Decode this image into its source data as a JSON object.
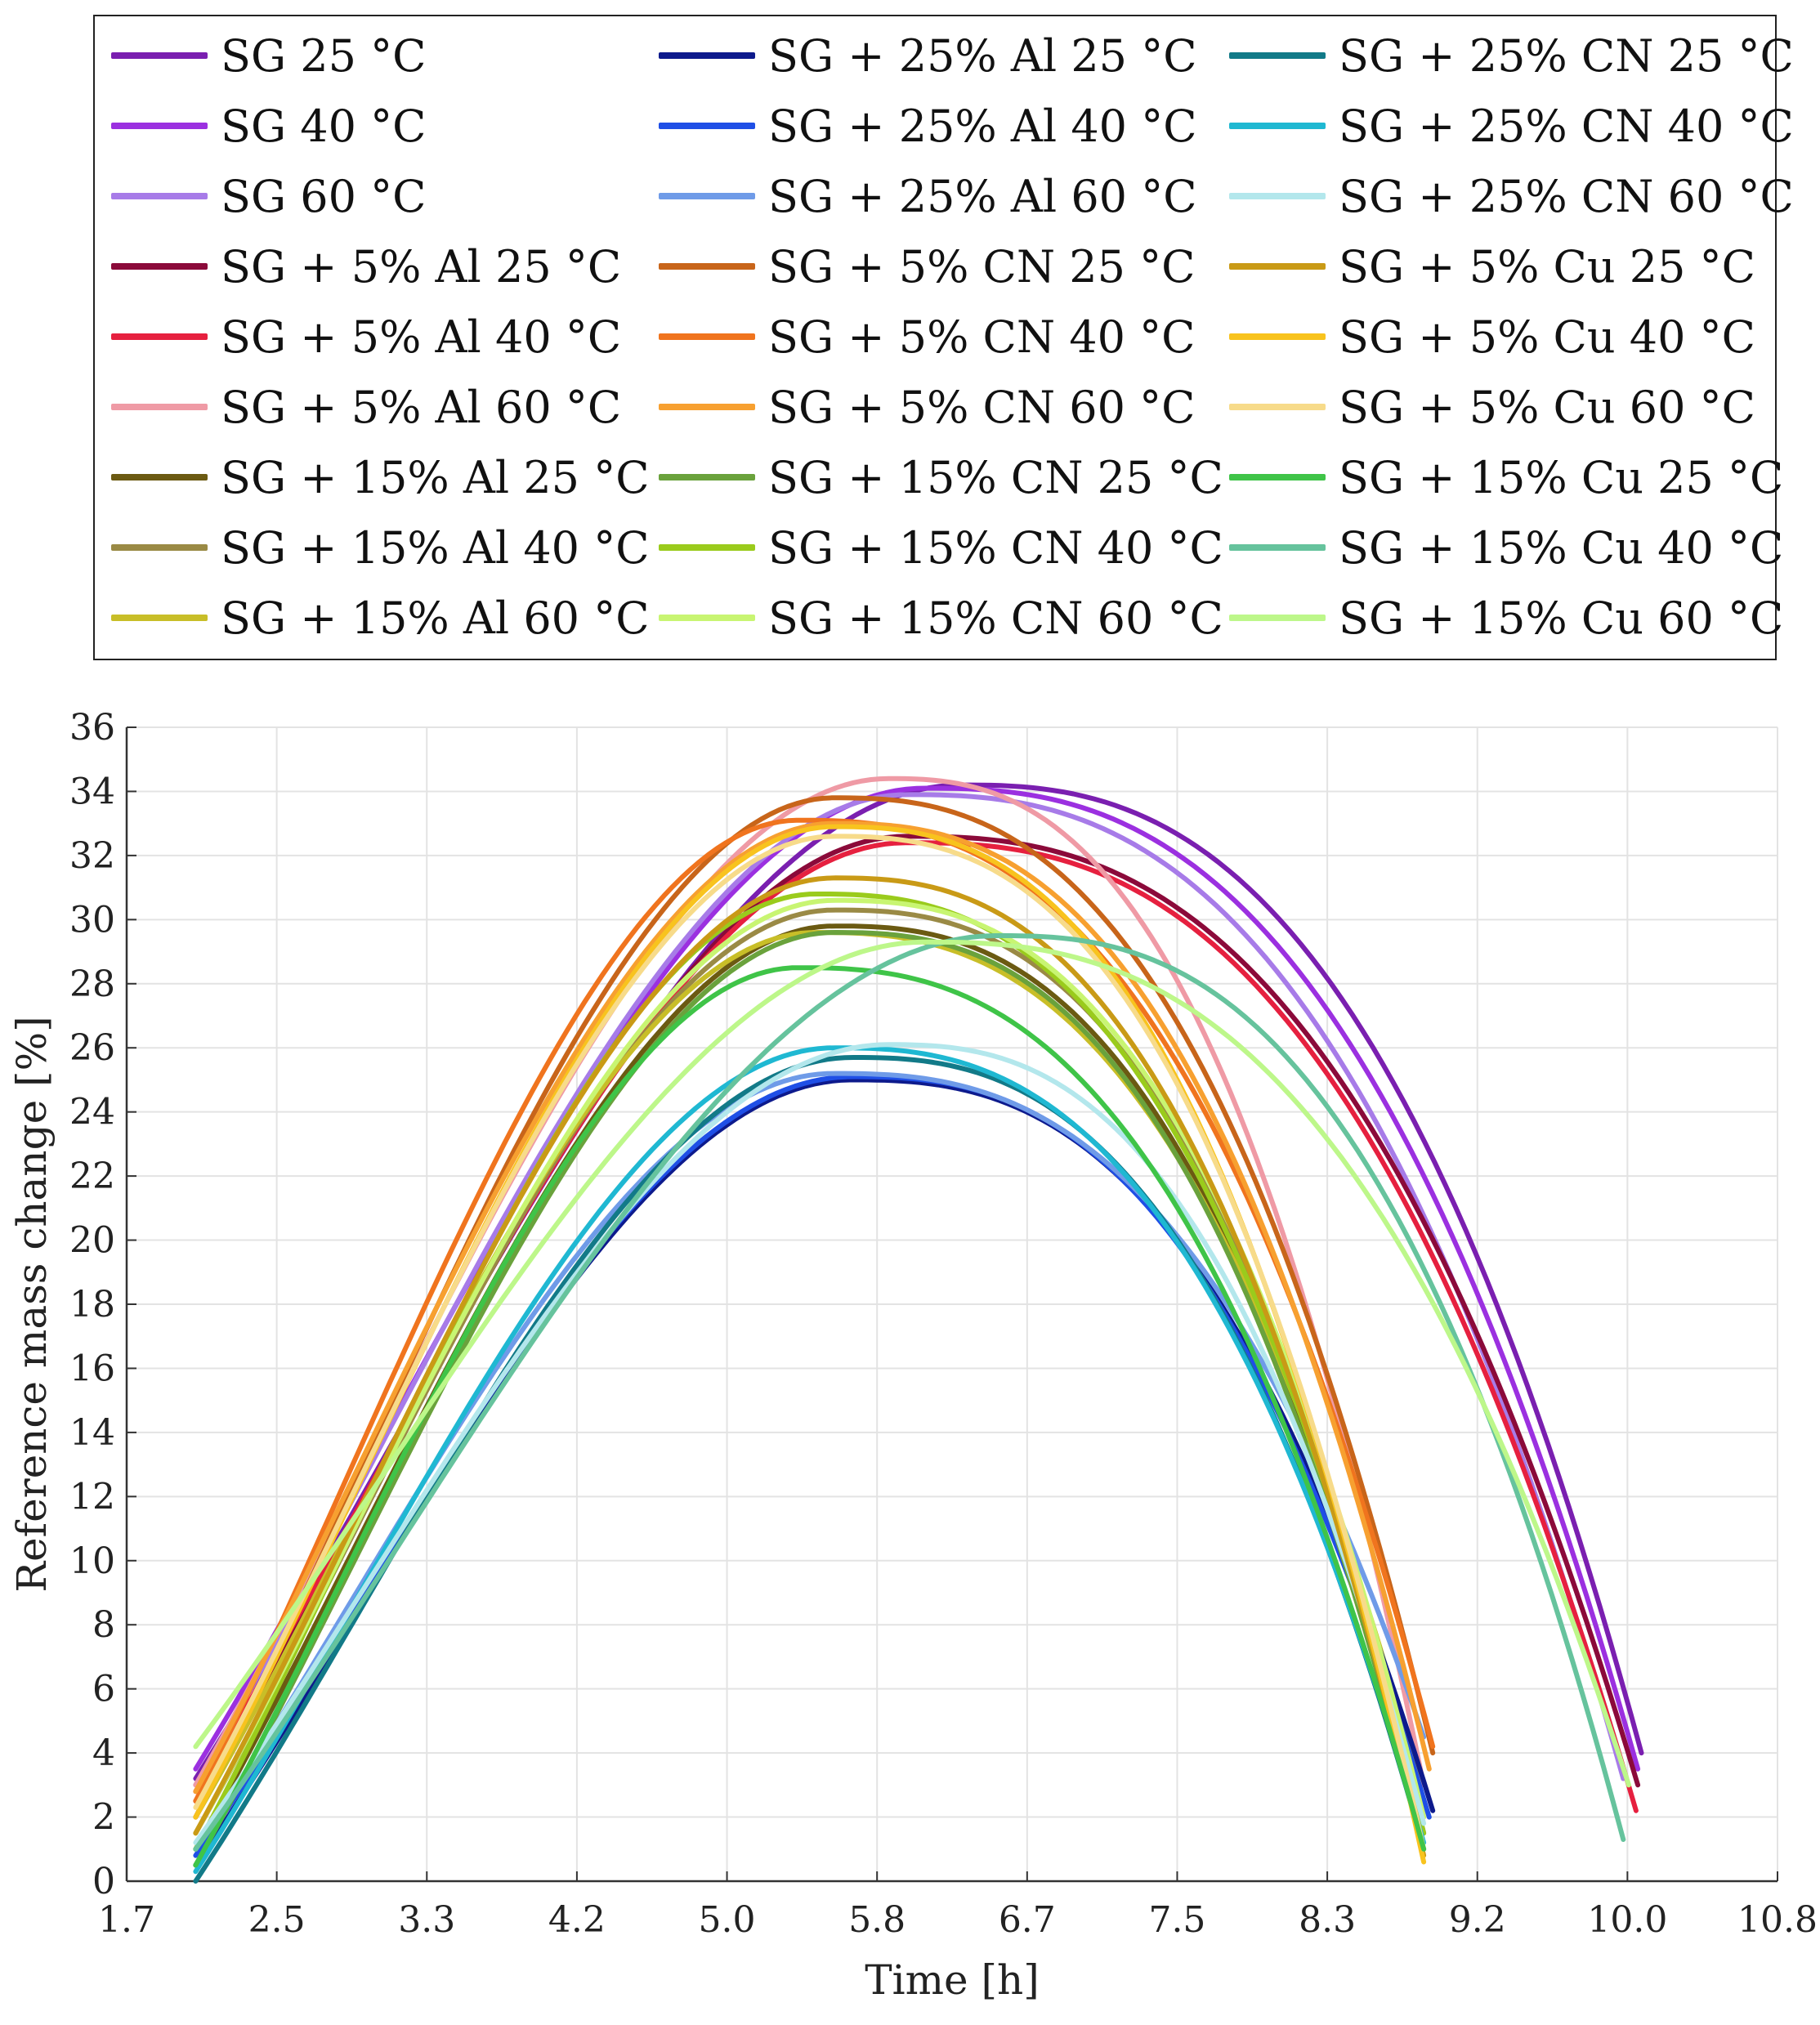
{
  "chart_data": {
    "type": "line",
    "xlabel": "Time [h]",
    "ylabel": "Reference mass change [%]",
    "xlim": [
      1.7,
      10.8
    ],
    "ylim": [
      0,
      36
    ],
    "grid": true,
    "legend_position": "top",
    "x_ticks": [
      "1.7",
      "2.5",
      "3.3",
      "4.2",
      "5.0",
      "5.8",
      "6.7",
      "7.5",
      "8.3",
      "9.2",
      "10.0",
      "10.8"
    ],
    "y_ticks": [
      "0",
      "2",
      "4",
      "6",
      "8",
      "10",
      "12",
      "14",
      "16",
      "18",
      "20",
      "22",
      "24",
      "26",
      "28",
      "30",
      "32",
      "34",
      "36"
    ],
    "series": [
      {
        "name": "SG 25 °C",
        "color": "#7a1fb0",
        "start": 2.08,
        "end": 10.05,
        "y0": 3.2,
        "peak_t": 6.3,
        "peak": 34.2,
        "y1": 4.0
      },
      {
        "name": "SG 40 °C",
        "color": "#9b30e0",
        "start": 2.08,
        "end": 10.03,
        "y0": 3.5,
        "peak_t": 6.1,
        "peak": 34.1,
        "y1": 3.5
      },
      {
        "name": "SG 60 °C",
        "color": "#a77be8",
        "start": 2.08,
        "end": 9.95,
        "y0": 3.0,
        "peak_t": 6.0,
        "peak": 33.9,
        "y1": 3.2
      },
      {
        "name": "SG + 5% Al 25 °C",
        "color": "#8b0a3a",
        "start": 2.08,
        "end": 10.03,
        "y0": 2.5,
        "peak_t": 6.0,
        "peak": 32.6,
        "y1": 3.0
      },
      {
        "name": "SG + 5% Al 40 °C",
        "color": "#e6203f",
        "start": 2.08,
        "end": 10.02,
        "y0": 2.8,
        "peak_t": 6.0,
        "peak": 32.4,
        "y1": 2.2
      },
      {
        "name": "SG + 5% Al 60 °C",
        "color": "#ef9aa5",
        "start": 2.08,
        "end": 8.85,
        "y0": 3.0,
        "peak_t": 5.9,
        "peak": 34.4,
        "y1": 3.0
      },
      {
        "name": "SG + 15% Al 25 °C",
        "color": "#6b5a12",
        "start": 2.08,
        "end": 8.85,
        "y0": 1.0,
        "peak_t": 5.6,
        "peak": 29.8,
        "y1": 1.5
      },
      {
        "name": "SG + 15% Al 40 °C",
        "color": "#9a8a45",
        "start": 2.08,
        "end": 8.85,
        "y0": 1.5,
        "peak_t": 5.6,
        "peak": 30.3,
        "y1": 2.0
      },
      {
        "name": "SG + 15% Al 60 °C",
        "color": "#c8be28",
        "start": 2.08,
        "end": 8.85,
        "y0": 2.0,
        "peak_t": 5.5,
        "peak": 29.6,
        "y1": 2.5
      },
      {
        "name": "SG + 25% Al 25 °C",
        "color": "#0d1a8c",
        "start": 2.08,
        "end": 8.9,
        "y0": 0.5,
        "peak_t": 5.7,
        "peak": 25.0,
        "y1": 2.2
      },
      {
        "name": "SG + 25% Al 40 °C",
        "color": "#1f4fe6",
        "start": 2.08,
        "end": 8.88,
        "y0": 0.8,
        "peak_t": 5.7,
        "peak": 25.1,
        "y1": 2.0
      },
      {
        "name": "SG + 25% Al 60 °C",
        "color": "#6f9be8",
        "start": 2.08,
        "end": 8.85,
        "y0": 1.0,
        "peak_t": 5.6,
        "peak": 25.2,
        "y1": 4.5
      },
      {
        "name": "SG + 5% CN 25 °C",
        "color": "#c8651a",
        "start": 2.08,
        "end": 8.9,
        "y0": 2.0,
        "peak_t": 5.6,
        "peak": 33.8,
        "y1": 4.0
      },
      {
        "name": "SG + 5% CN 40 °C",
        "color": "#f0741e",
        "start": 2.08,
        "end": 8.9,
        "y0": 2.5,
        "peak_t": 5.4,
        "peak": 33.1,
        "y1": 4.2
      },
      {
        "name": "SG + 5% CN 60 °C",
        "color": "#f7a030",
        "start": 2.08,
        "end": 8.88,
        "y0": 2.8,
        "peak_t": 5.6,
        "peak": 33.0,
        "y1": 3.5
      },
      {
        "name": "SG + 15% CN 25 °C",
        "color": "#6aa23c",
        "start": 2.08,
        "end": 8.85,
        "y0": 0.5,
        "peak_t": 5.6,
        "peak": 29.6,
        "y1": 1.0
      },
      {
        "name": "SG + 15% CN 40 °C",
        "color": "#9acb1c",
        "start": 2.08,
        "end": 8.85,
        "y0": 1.0,
        "peak_t": 5.5,
        "peak": 30.8,
        "y1": 1.5
      },
      {
        "name": "SG + 15% CN 60 °C",
        "color": "#c8f572",
        "start": 2.08,
        "end": 8.85,
        "y0": 1.5,
        "peak_t": 5.6,
        "peak": 30.6,
        "y1": 2.0
      },
      {
        "name": "SG + 25% CN 25 °C",
        "color": "#127a88",
        "start": 2.08,
        "end": 8.85,
        "y0": 0.0,
        "peak_t": 5.7,
        "peak": 25.7,
        "y1": 1.0
      },
      {
        "name": "SG + 25% CN 40 °C",
        "color": "#1fb8d2",
        "start": 2.08,
        "end": 8.85,
        "y0": 0.3,
        "peak_t": 5.6,
        "peak": 26.0,
        "y1": 1.2
      },
      {
        "name": "SG + 25% CN 60 °C",
        "color": "#b3e7ec",
        "start": 2.08,
        "end": 8.85,
        "y0": 1.2,
        "peak_t": 5.9,
        "peak": 26.1,
        "y1": 1.8
      },
      {
        "name": "SG + 5% Cu 25 °C",
        "color": "#c99a16",
        "start": 2.08,
        "end": 8.85,
        "y0": 1.5,
        "peak_t": 5.6,
        "peak": 31.3,
        "y1": 0.8
      },
      {
        "name": "SG + 5% Cu 40 °C",
        "color": "#f8c31e",
        "start": 2.08,
        "end": 8.85,
        "y0": 2.0,
        "peak_t": 5.6,
        "peak": 32.9,
        "y1": 0.6
      },
      {
        "name": "SG + 5% Cu 60 °C",
        "color": "#f7db8a",
        "start": 2.08,
        "end": 8.85,
        "y0": 2.3,
        "peak_t": 5.6,
        "peak": 32.6,
        "y1": 1.0
      },
      {
        "name": "SG + 15% Cu 25 °C",
        "color": "#3fc448",
        "start": 2.08,
        "end": 8.85,
        "y0": 0.5,
        "peak_t": 5.4,
        "peak": 28.5,
        "y1": 1.0
      },
      {
        "name": "SG + 15% Cu 40 °C",
        "color": "#66c39d",
        "start": 2.08,
        "end": 9.95,
        "y0": 1.0,
        "peak_t": 6.5,
        "peak": 29.5,
        "y1": 1.3
      },
      {
        "name": "SG + 15% Cu 60 °C",
        "color": "#bdf78a",
        "start": 2.08,
        "end": 9.98,
        "y0": 4.2,
        "peak_t": 6.1,
        "peak": 29.3,
        "y1": 3.0
      }
    ]
  }
}
